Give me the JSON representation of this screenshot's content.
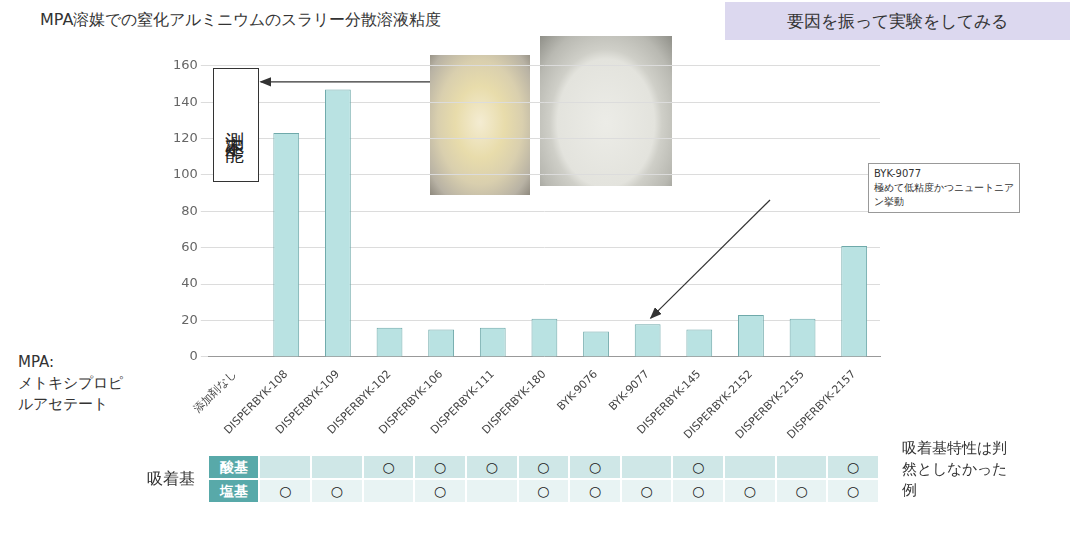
{
  "chart_data": {
    "type": "bar",
    "title": "MPA溶媒での窒化アルミニウムのスラリー分散溶液粘度",
    "categories": [
      "添加剤なし",
      "DISPERBYK-108",
      "DISPERBYK-109",
      "DISPERBYK-102",
      "DISPERBYK-106",
      "DISPERBYK-111",
      "DISPERBYK-180",
      "BYK-9076",
      "BYK-9077",
      "DISPERBYK-145",
      "DISPERBYK-2152",
      "DISPERBYK-2155",
      "DISPERBYK-2157"
    ],
    "values": [
      null,
      123,
      147,
      16,
      15,
      16,
      21,
      14,
      18,
      15,
      23,
      21,
      61
    ],
    "color": "#b9e2e2",
    "ylim": [
      0,
      160
    ],
    "yticks": [
      0,
      20,
      40,
      60,
      80,
      100,
      120,
      140,
      160
    ],
    "grid": true,
    "annotations": [
      {
        "category": "添加剤なし",
        "text": "測定不能"
      },
      {
        "category": "BYK-9077",
        "text": "BYK-9077 極めて低粘度かつニュートニアン挙動"
      }
    ]
  },
  "header_box": "要因を振って実験をしてみる",
  "solvent_note": "MPA: メトキシプロピルアセテート",
  "adsorption_table": {
    "title": "吸着基",
    "rows": [
      {
        "label": "酸基",
        "marks": [
          null,
          null,
          "○",
          "○",
          "○",
          "○",
          "○",
          null,
          "○",
          null,
          null,
          "○"
        ]
      },
      {
        "label": "塩基",
        "marks": [
          "○",
          "○",
          null,
          "○",
          null,
          "○",
          "○",
          "○",
          "○",
          "○",
          "○",
          "○"
        ]
      }
    ],
    "note": "吸着基特性は判然としなかった例"
  }
}
